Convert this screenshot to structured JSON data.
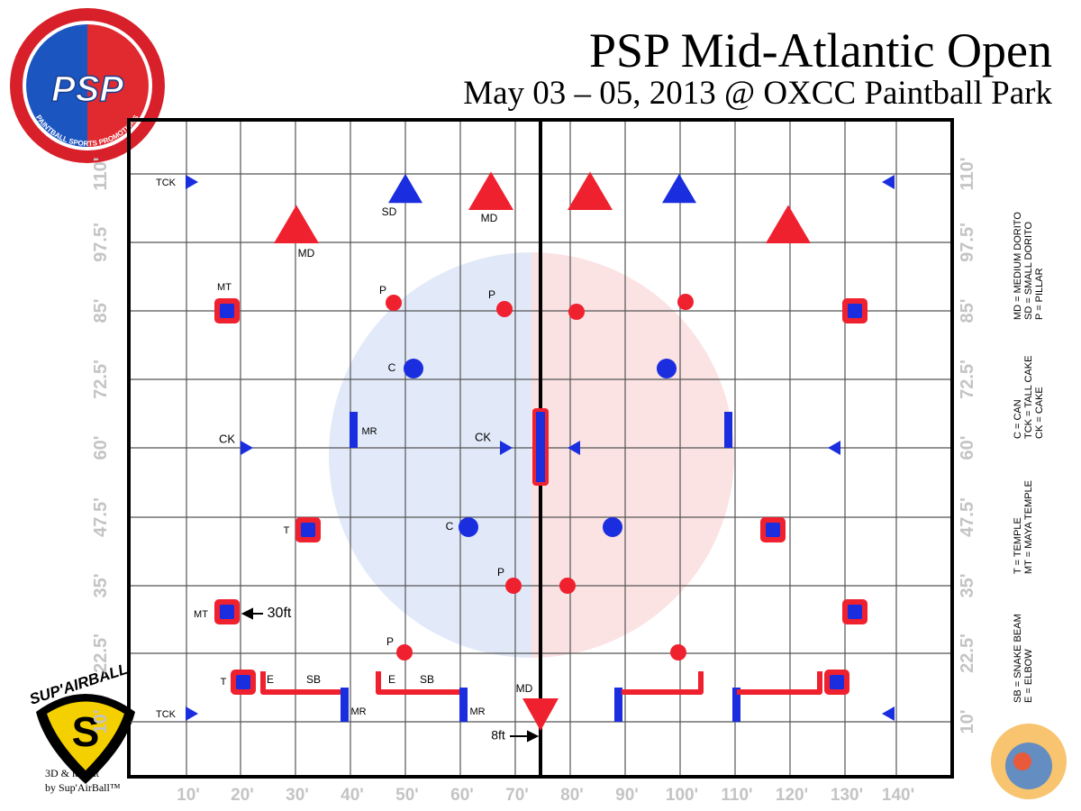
{
  "header": {
    "title": "PSP Mid-Atlantic Open",
    "subtitle": "May 03 – 05, 2013 @ OXCC Paintball Park"
  },
  "axes": {
    "x_labels": [
      "10'",
      "20'",
      "30'",
      "40'",
      "50'",
      "60'",
      "70'",
      "80'",
      "90'",
      "100'",
      "110'",
      "120'",
      "130'",
      "140'"
    ],
    "y_labels": [
      "10'",
      "22.5'",
      "35'",
      "47.5'",
      "60'",
      "72.5'",
      "85'",
      "97.5'",
      "110'"
    ]
  },
  "legend": [
    "MD = MEDIUM DORITO",
    "SD = SMALL DORITO",
    "P = PILLAR",
    "C = CAN",
    "TCK = TALL CAKE",
    "CK = CAKE",
    "T = TEMPLE",
    "MT = MAYA TEMPLE",
    "SB = SNAKE BEAM",
    "E = ELBOW"
  ],
  "field_labels": [
    "TCK",
    "SD",
    "MD",
    "MD",
    "MT",
    "P",
    "P",
    "C",
    "CK",
    "MR",
    "CK",
    "T",
    "C",
    "P",
    "MT",
    "30ft",
    "P",
    "T",
    "E",
    "SB",
    "E",
    "SB",
    "MD",
    "TCK",
    "MR",
    "MR",
    "8ft"
  ],
  "logos": {
    "psp_mark": "PSP",
    "psp_ring": "PAINTBALL SPORTS PROMOTIONS",
    "supairball": "SUP'AIRBALL",
    "credit_line1": "3D & layout",
    "credit_line2": "by Sup'AirBall™"
  }
}
